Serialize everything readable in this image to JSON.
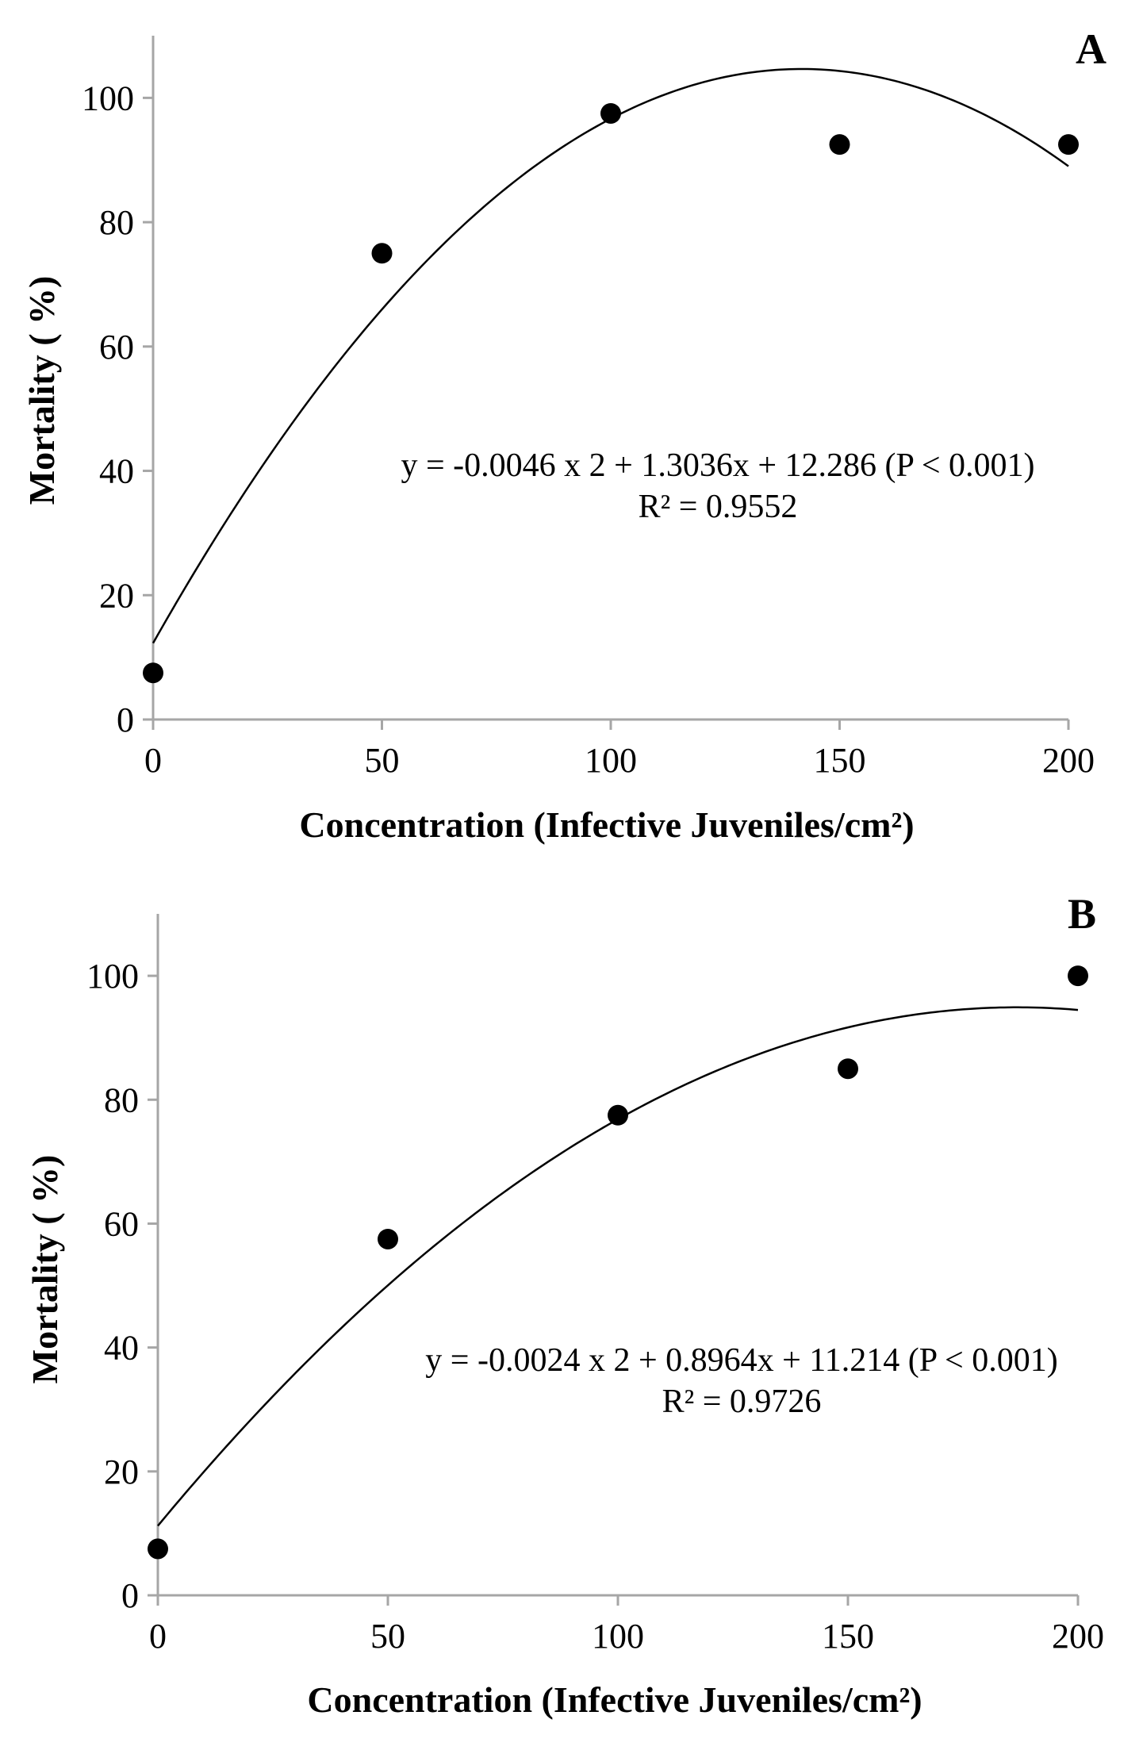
{
  "chart_data": [
    {
      "type": "scatter",
      "panel_label": "A",
      "x": [
        0,
        50,
        100,
        150,
        200
      ],
      "y": [
        7.5,
        75,
        97.5,
        92.5,
        92.5
      ],
      "xlabel": "Concentration (Infective Juveniles/cm²)",
      "ylabel": "Mortality ( %)",
      "xlim": [
        0,
        200
      ],
      "ylim": [
        0,
        110
      ],
      "xticks": [
        "0",
        "50",
        "100",
        "150",
        "200"
      ],
      "yticks": [
        "0",
        "20",
        "40",
        "60",
        "80",
        "100"
      ],
      "fit": {
        "type": "polynomial",
        "a": -0.0046,
        "b": 1.3036,
        "c": 12.286
      },
      "equation": "y = -0.0046 x 2 + 1.3036x + 12.286 (P < 0.001)",
      "r2": "R² = 0.9552",
      "grid": false,
      "colors": {
        "points": "#000000",
        "fit_line": "#000000",
        "axis": "#a6a6a6"
      }
    },
    {
      "type": "scatter",
      "panel_label": "B",
      "x": [
        0,
        50,
        100,
        150,
        200
      ],
      "y": [
        7.5,
        57.5,
        77.5,
        85,
        100
      ],
      "xlabel": "Concentration (Infective Juveniles/cm²)",
      "ylabel": "Mortality ( %)",
      "xlim": [
        0,
        200
      ],
      "ylim": [
        0,
        110
      ],
      "xticks": [
        "0",
        "50",
        "100",
        "150",
        "200"
      ],
      "yticks": [
        "0",
        "20",
        "40",
        "60",
        "80",
        "100"
      ],
      "fit": {
        "type": "polynomial",
        "a": -0.0024,
        "b": 0.8964,
        "c": 11.214
      },
      "equation": "y = -0.0024 x 2 + 0.8964x + 11.214 (P < 0.001)",
      "r2": "R² = 0.9726",
      "grid": false,
      "colors": {
        "points": "#000000",
        "fit_line": "#000000",
        "axis": "#a6a6a6"
      }
    }
  ]
}
